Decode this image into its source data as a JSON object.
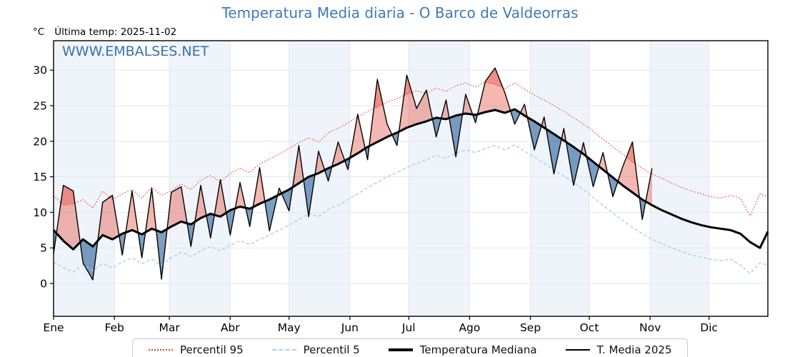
{
  "title": "Temperatura Media diaria - O Barco de Valdeorras",
  "unit_label": "°C",
  "last_temp_label": "Última temp: 2025-11-02",
  "watermark": "WWW.EMBALSES.NET",
  "colors": {
    "title": "#3d7cb5",
    "watermark": "#3572ad",
    "p95_line": "#e8392f",
    "p5_line": "#a6d2e8",
    "median_line": "#000000",
    "t2025_line": "#000000",
    "fill_above": "rgba(231,76,60,0.40)",
    "fill_above_p95": "rgba(225,50,42,0.30)",
    "fill_below": "rgba(38,93,153,0.60)",
    "month_band": "#eff4fa",
    "grid": "#e2e7ed",
    "frame": "#000000"
  },
  "legend": [
    {
      "label": "Percentil 95",
      "swatch": "red-dotted"
    },
    {
      "label": "Percentil 5",
      "swatch": "blue-dashed"
    },
    {
      "label": "Temperatura Mediana",
      "swatch": "black-thick"
    },
    {
      "label": "T. Media 2025",
      "swatch": "black-thin"
    }
  ],
  "chart_data": {
    "type": "line",
    "title": "Temperatura Media diaria - O Barco de Valdeorras",
    "xlabel": "",
    "ylabel": "°C",
    "ylim": [
      -4.6,
      34.1
    ],
    "yticks": [
      0,
      5,
      10,
      15,
      20,
      25,
      30
    ],
    "x_unit": "day-of-year",
    "days_in_year": 365,
    "month_labels": [
      "Ene",
      "Feb",
      "Mar",
      "Abr",
      "May",
      "Jun",
      "Jul",
      "Ago",
      "Sep",
      "Oct",
      "Nov",
      "Dic"
    ],
    "month_start_days": [
      0,
      31,
      59,
      90,
      120,
      151,
      181,
      212,
      243,
      273,
      304,
      334
    ],
    "shaded_month_indices": [
      0,
      2,
      4,
      6,
      8,
      10
    ],
    "grid_on": true,
    "legend_position": "bottom-center",
    "days_full": [
      0,
      5,
      10,
      15,
      20,
      25,
      30,
      35,
      40,
      45,
      50,
      55,
      60,
      65,
      70,
      75,
      80,
      85,
      90,
      95,
      100,
      105,
      110,
      115,
      120,
      125,
      130,
      135,
      140,
      145,
      150,
      155,
      160,
      165,
      170,
      175,
      180,
      185,
      190,
      195,
      200,
      205,
      210,
      215,
      220,
      225,
      230,
      235,
      240,
      245,
      250,
      255,
      260,
      265,
      270,
      275,
      280,
      285,
      290,
      295,
      300,
      305,
      310,
      315,
      320,
      325,
      330,
      335,
      340,
      345,
      350,
      355,
      360,
      364
    ],
    "days_2025": [
      0,
      5,
      10,
      15,
      20,
      25,
      30,
      35,
      40,
      45,
      50,
      55,
      60,
      65,
      70,
      75,
      80,
      85,
      90,
      95,
      100,
      105,
      110,
      115,
      120,
      125,
      130,
      135,
      140,
      145,
      150,
      155,
      160,
      165,
      170,
      175,
      180,
      185,
      190,
      195,
      200,
      205,
      210,
      215,
      220,
      225,
      230,
      235,
      240,
      245,
      250,
      255,
      260,
      265,
      270,
      275,
      280,
      285,
      290,
      295,
      300,
      305
    ],
    "series": [
      {
        "name": "Percentil 95",
        "style": "red-dotted",
        "days_key": "days_full",
        "values": [
          12.4,
          11.0,
          11.2,
          11.8,
          10.6,
          13.0,
          11.8,
          12.6,
          13.2,
          12.0,
          13.5,
          12.4,
          13.0,
          14.0,
          13.2,
          14.5,
          15.2,
          14.3,
          15.5,
          16.2,
          15.6,
          16.8,
          17.5,
          18.2,
          19.0,
          19.8,
          20.5,
          19.9,
          21.2,
          21.8,
          22.6,
          23.4,
          24.2,
          24.8,
          25.5,
          26.0,
          26.6,
          27.1,
          26.7,
          27.5,
          27.0,
          27.8,
          28.2,
          27.6,
          28.3,
          28.0,
          27.4,
          28.2,
          27.3,
          26.5,
          25.8,
          25.0,
          24.2,
          23.3,
          22.4,
          21.4,
          20.3,
          19.2,
          18.2,
          17.1,
          16.2,
          15.4,
          14.8,
          14.1,
          13.5,
          13.0,
          12.6,
          12.2,
          12.0,
          12.4,
          12.0,
          9.5,
          12.6,
          12.2
        ]
      },
      {
        "name": "Percentil 5",
        "style": "blue-dashed",
        "days_key": "days_full",
        "values": [
          3.0,
          2.2,
          1.6,
          2.6,
          1.8,
          2.8,
          2.2,
          3.0,
          3.6,
          2.8,
          3.4,
          2.6,
          3.6,
          4.4,
          3.8,
          4.6,
          5.2,
          4.6,
          5.4,
          6.0,
          5.5,
          6.2,
          6.8,
          7.5,
          8.2,
          9.0,
          9.8,
          9.4,
          10.4,
          11.0,
          11.8,
          12.6,
          13.5,
          14.2,
          15.0,
          15.6,
          16.3,
          16.9,
          17.4,
          18.0,
          17.6,
          18.3,
          18.8,
          18.4,
          19.0,
          19.4,
          18.8,
          19.5,
          18.6,
          17.8,
          16.9,
          16.0,
          15.1,
          14.2,
          13.2,
          12.1,
          11.0,
          9.9,
          8.9,
          7.9,
          7.0,
          6.2,
          5.6,
          5.0,
          4.5,
          4.0,
          3.7,
          3.4,
          3.2,
          3.4,
          2.6,
          1.4,
          2.9,
          2.6
        ]
      },
      {
        "name": "Temperatura Mediana",
        "style": "black-thick",
        "days_key": "days_full",
        "values": [
          7.5,
          6.0,
          4.8,
          6.2,
          5.2,
          6.8,
          6.2,
          7.0,
          7.5,
          6.9,
          7.7,
          7.2,
          8.0,
          8.7,
          8.3,
          9.2,
          9.8,
          9.4,
          10.3,
          10.8,
          10.5,
          11.2,
          11.8,
          12.5,
          13.2,
          14.1,
          15.0,
          15.5,
          16.2,
          16.8,
          17.5,
          18.3,
          19.2,
          19.9,
          20.6,
          21.2,
          21.9,
          22.4,
          22.8,
          23.3,
          23.1,
          23.6,
          23.9,
          23.7,
          24.1,
          24.4,
          24.0,
          24.5,
          23.6,
          22.8,
          21.9,
          21.0,
          20.1,
          19.2,
          18.2,
          17.1,
          16.0,
          14.9,
          13.8,
          12.8,
          11.8,
          11.0,
          10.3,
          9.7,
          9.1,
          8.6,
          8.2,
          7.9,
          7.7,
          7.5,
          7.0,
          5.8,
          5.0,
          7.3
        ]
      },
      {
        "name": "T. Media 2025",
        "style": "black-thin",
        "days_key": "days_2025",
        "values": [
          4.2,
          13.8,
          13.0,
          2.9,
          0.5,
          11.4,
          12.4,
          4.0,
          13.0,
          3.6,
          13.4,
          0.6,
          12.8,
          13.6,
          5.2,
          13.8,
          6.4,
          14.6,
          6.8,
          14.2,
          8.0,
          16.3,
          7.4,
          13.4,
          10.2,
          19.4,
          9.4,
          18.6,
          14.4,
          19.9,
          16.0,
          23.8,
          17.4,
          28.7,
          22.4,
          19.4,
          29.3,
          24.6,
          27.2,
          20.6,
          25.8,
          17.8,
          26.6,
          22.6,
          28.4,
          30.3,
          26.8,
          22.4,
          25.2,
          18.8,
          23.4,
          15.4,
          21.8,
          13.8,
          19.8,
          13.6,
          18.4,
          12.2,
          16.4,
          19.9,
          9.0,
          16.2
        ]
      }
    ],
    "fills": {
      "above_median": "red (T. Media 2025 > Temperatura Mediana)",
      "below_median": "blue (T. Media 2025 < Temperatura Mediana)",
      "above_p95_overlay": "darker red where T. Media 2025 > Percentil 95"
    },
    "annotations": {
      "last_data_day": 305,
      "last_data_date": "2025-11-02",
      "max_2025": 30.3,
      "min_2025": 0.5
    }
  }
}
